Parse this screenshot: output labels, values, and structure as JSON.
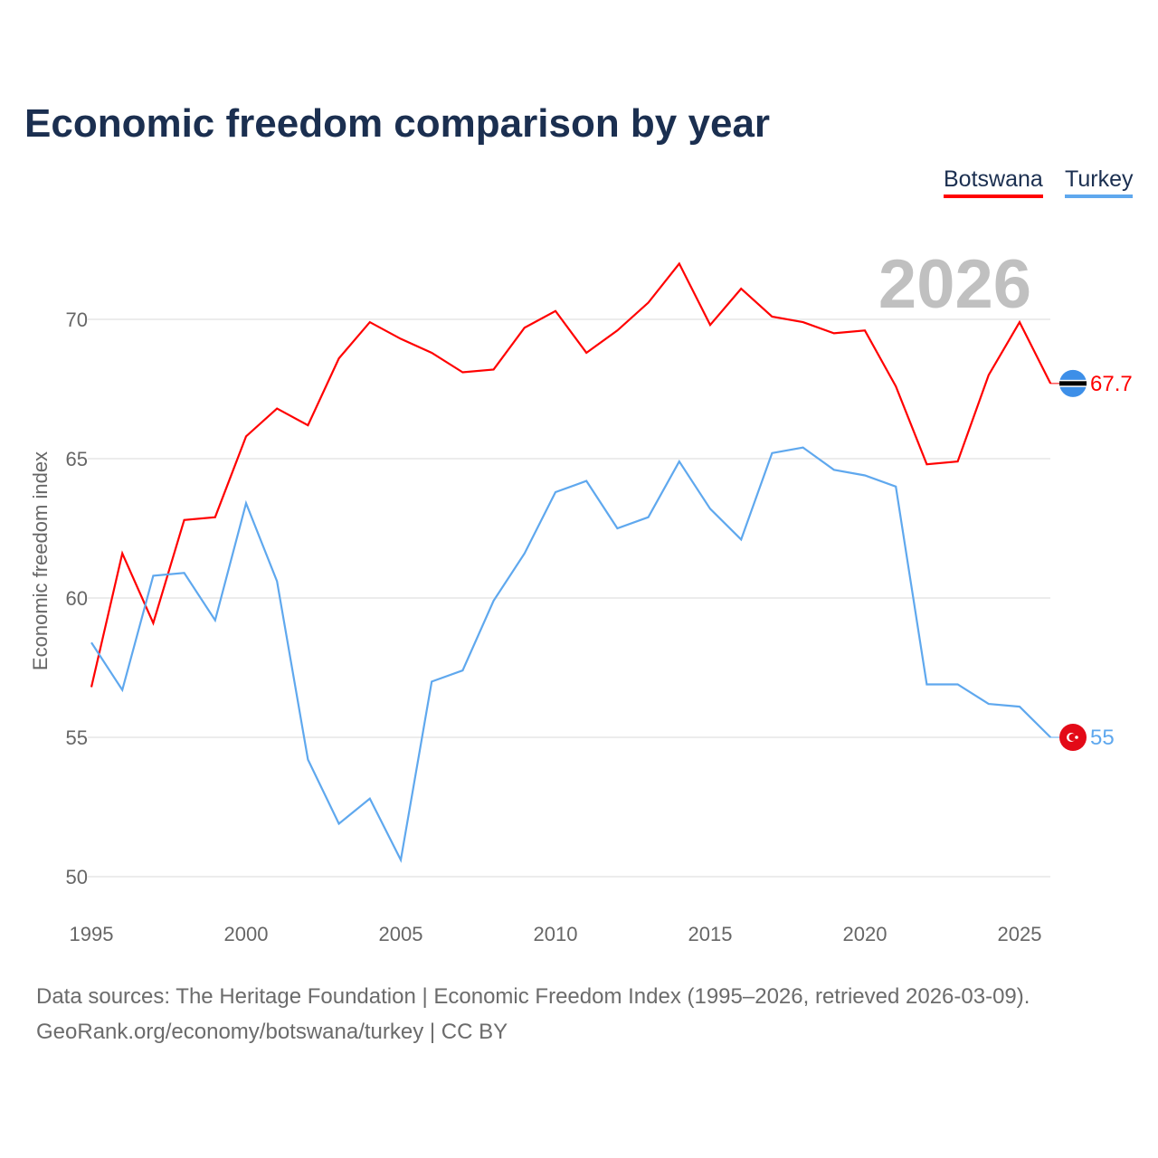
{
  "chart_data": {
    "type": "line",
    "title": "Economic freedom comparison by year",
    "xlabel": "",
    "ylabel": "Economic freedom index",
    "year_label": "2026",
    "xlim": [
      1995,
      2026
    ],
    "ylim": [
      50,
      72.5
    ],
    "x_ticks": [
      1995,
      2000,
      2005,
      2010,
      2015,
      2020,
      2025
    ],
    "y_ticks": [
      50,
      55,
      60,
      65,
      70
    ],
    "grid": true,
    "legend_position": "top-right",
    "x": [
      1995,
      1996,
      1997,
      1998,
      1999,
      2000,
      2001,
      2002,
      2003,
      2004,
      2005,
      2006,
      2007,
      2008,
      2009,
      2010,
      2011,
      2012,
      2013,
      2014,
      2015,
      2016,
      2017,
      2018,
      2019,
      2020,
      2021,
      2022,
      2023,
      2024,
      2025,
      2026
    ],
    "series": [
      {
        "name": "Botswana",
        "color": "#ff0000",
        "end_label": "67.7",
        "values": [
          56.8,
          61.6,
          59.1,
          62.8,
          62.9,
          65.8,
          66.8,
          66.2,
          68.6,
          69.9,
          69.3,
          68.8,
          68.1,
          68.2,
          69.7,
          70.3,
          68.8,
          69.6,
          70.6,
          72.0,
          69.8,
          71.1,
          70.1,
          69.9,
          69.5,
          69.6,
          67.6,
          64.8,
          64.9,
          68.0,
          69.9,
          67.7
        ]
      },
      {
        "name": "Turkey",
        "color": "#5fa8ee",
        "end_label": "55",
        "values": [
          58.4,
          56.7,
          60.8,
          60.9,
          59.2,
          63.4,
          60.6,
          54.2,
          51.9,
          52.8,
          50.6,
          57.0,
          57.4,
          59.9,
          61.6,
          63.8,
          64.2,
          62.5,
          62.9,
          64.9,
          63.2,
          62.1,
          65.2,
          65.4,
          64.6,
          64.4,
          64.0,
          56.9,
          56.9,
          56.2,
          56.1,
          55.0
        ]
      }
    ]
  },
  "footer": {
    "line1": "Data sources: The Heritage Foundation | Economic Freedom Index (1995–2026, retrieved 2026-03-09).",
    "line2": "GeoRank.org/economy/botswana/turkey | CC BY"
  }
}
